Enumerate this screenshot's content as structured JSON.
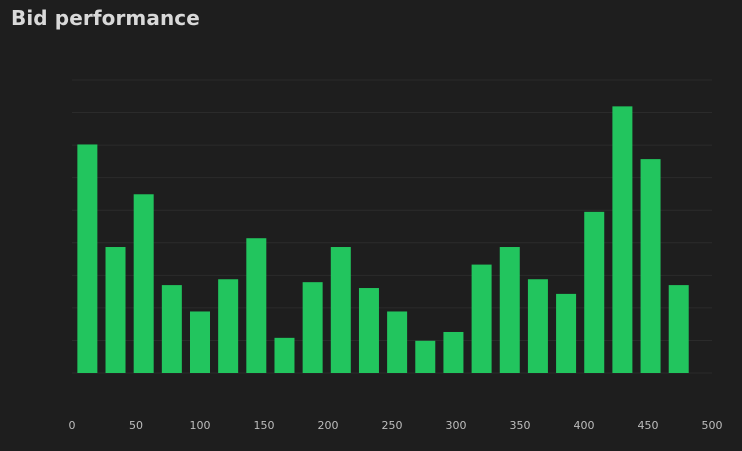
{
  "chart_data": {
    "type": "bar",
    "title": "Bid performance",
    "xlabel": "",
    "ylabel": "",
    "x_ticks": [
      "0",
      "50",
      "100",
      "150",
      "200",
      "250",
      "300",
      "350",
      "400",
      "450",
      "500"
    ],
    "xlim": [
      0,
      500
    ],
    "ylim": [
      0,
      100
    ],
    "grid": true,
    "bar_color": "#22c55e",
    "series": [
      {
        "name": "",
        "x": [
          12,
          34,
          56,
          78,
          100,
          122,
          144,
          166,
          188,
          210,
          232,
          254,
          276,
          298,
          320,
          342,
          364,
          386,
          408,
          430,
          452,
          474,
          496
        ],
        "values": [
          78,
          43,
          61,
          30,
          21,
          32,
          46,
          12,
          31,
          43,
          29,
          21,
          11,
          14,
          37,
          43,
          32,
          27,
          55,
          91,
          73,
          30,
          0
        ]
      }
    ]
  }
}
